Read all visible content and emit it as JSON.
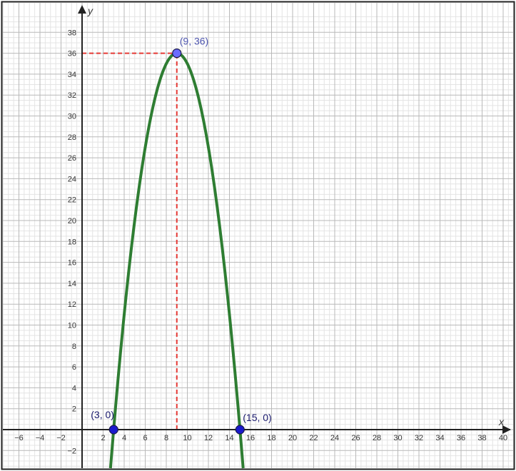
{
  "chart_data": {
    "type": "line",
    "xlabel": "x",
    "ylabel": "y",
    "xlim": [
      -7.6,
      40.5
    ],
    "ylim": [
      -3.6,
      39.6
    ],
    "grid": true,
    "x_ticks": [
      -6,
      -4,
      -2,
      2,
      4,
      6,
      8,
      10,
      12,
      14,
      16,
      18,
      20,
      22,
      24,
      26,
      28,
      30,
      32,
      34,
      36,
      38,
      40
    ],
    "y_ticks": [
      -2,
      2,
      4,
      6,
      8,
      10,
      12,
      14,
      16,
      18,
      20,
      22,
      24,
      26,
      28,
      30,
      32,
      34,
      36,
      38
    ],
    "series": [
      {
        "function": "y = -(x - 3)(x - 15)",
        "color": "#2e7d32",
        "x_range": [
          2.7,
          15.3
        ]
      }
    ],
    "points": [
      {
        "x": 9,
        "y": 36,
        "label": "(9, 36)",
        "fill": "#6b6bff",
        "label_color": "#4f57b0"
      },
      {
        "x": 3,
        "y": 0,
        "label": "(3, 0)",
        "fill": "#1a1acc",
        "label_color": "#1a1a6e"
      },
      {
        "x": 15,
        "y": 0,
        "label": "(15, 0)",
        "fill": "#1a1acc",
        "label_color": "#1a1a6e"
      }
    ],
    "guides": [
      {
        "from": [
          0,
          36
        ],
        "to": [
          9,
          36
        ],
        "color": "#e53935",
        "style": "dashed"
      },
      {
        "from": [
          9,
          0
        ],
        "to": [
          9,
          36
        ],
        "color": "#e53935",
        "style": "dashed"
      }
    ]
  }
}
